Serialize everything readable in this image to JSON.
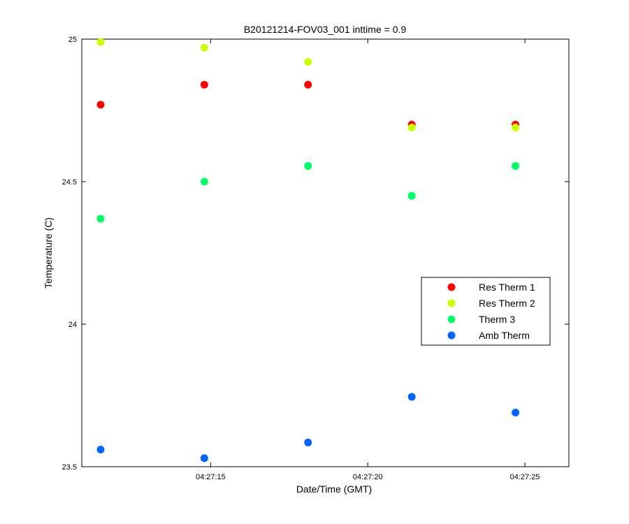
{
  "chart_data": {
    "type": "scatter",
    "title": "B20121214-FOV03_001 inttime = 0.9",
    "xlabel": "Date/Time (GMT)",
    "ylabel": "Temperature (C)",
    "x_unit": "time of day (GMT)",
    "xlim": [
      "04:27:10.9",
      "04:27:26.4"
    ],
    "ylim": [
      23.5,
      25
    ],
    "x_ticks": [
      "04:27:15",
      "04:27:20",
      "04:27:25"
    ],
    "y_ticks": [
      "23.5",
      "24",
      "24.5",
      "25"
    ],
    "x": [
      "04:27:11.5",
      "04:27:14.8",
      "04:27:18.1",
      "04:27:21.4",
      "04:27:24.7"
    ],
    "series": [
      {
        "name": "Res Therm 1",
        "color": "#ff0000",
        "values": [
          24.77,
          24.84,
          24.84,
          24.7,
          24.7
        ]
      },
      {
        "name": "Res Therm 2",
        "color": "#ccff00",
        "values": [
          24.99,
          24.97,
          24.92,
          24.69,
          24.69
        ]
      },
      {
        "name": "Therm 3",
        "color": "#00ff66",
        "values": [
          24.37,
          24.5,
          24.555,
          24.45,
          24.555
        ]
      },
      {
        "name": "Amb Therm",
        "color": "#0066ff",
        "values": [
          23.56,
          23.53,
          23.585,
          23.745,
          23.69
        ]
      }
    ],
    "legend_position": "right",
    "grid": false,
    "marker": "filled-circle"
  }
}
